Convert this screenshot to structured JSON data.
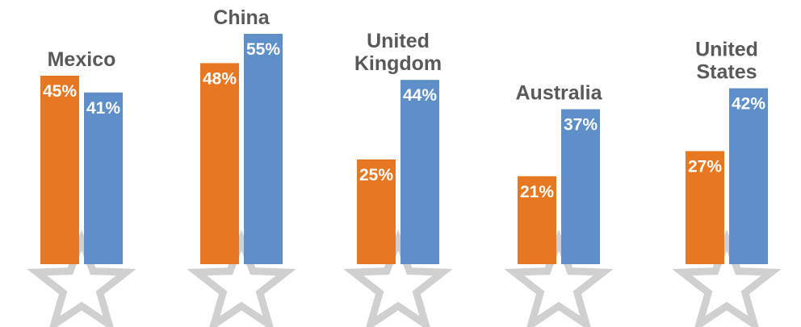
{
  "chart_data": {
    "type": "bar",
    "categories": [
      {
        "label_lines": [
          "Mexico"
        ]
      },
      {
        "label_lines": [
          "China"
        ]
      },
      {
        "label_lines": [
          "United",
          "Kingdom"
        ]
      },
      {
        "label_lines": [
          "Australia"
        ]
      },
      {
        "label_lines": [
          "United",
          "States"
        ]
      }
    ],
    "series": [
      {
        "color": "#E87722",
        "values": [
          45,
          48,
          25,
          21,
          27
        ],
        "labels": [
          "45%",
          "48%",
          "25%",
          "21%",
          "27%"
        ]
      },
      {
        "color": "#5F8FC8",
        "values": [
          41,
          55,
          44,
          37,
          42
        ],
        "labels": [
          "41%",
          "55%",
          "44%",
          "37%",
          "42%"
        ]
      }
    ],
    "decoration": {
      "icon": "star-outline-icon",
      "color": "#D0D0D0"
    },
    "grid": false,
    "legend": "none"
  }
}
